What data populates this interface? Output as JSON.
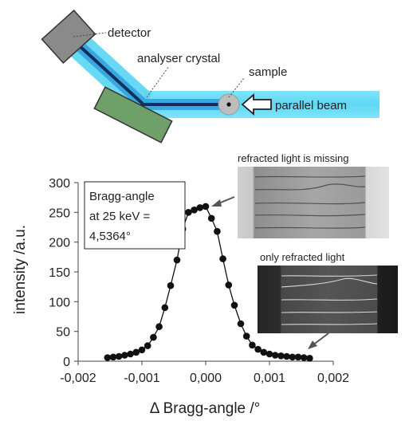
{
  "setup": {
    "labels": {
      "detector": "detector",
      "analyser_crystal": "analyser crystal",
      "sample": "sample",
      "parallel_beam": "parallel beam"
    },
    "colors": {
      "beam_outer": "#5fd7f3",
      "beam_core": "#0f2f5c",
      "detector": "#8a8a8a",
      "crystal": "#6fa06a",
      "sample": "#bdbdbd"
    }
  },
  "images": {
    "missing": {
      "caption": "refracted light is missing"
    },
    "only": {
      "caption": "only refracted light"
    }
  },
  "chart_data": {
    "type": "line",
    "xlabel": "Δ Bragg-angle /°",
    "ylabel": "intensity /a.u.",
    "xlim": [
      -0.002,
      0.002
    ],
    "ylim": [
      0,
      300
    ],
    "xticks": [
      -0.002,
      -0.001,
      0,
      0.001,
      0.002
    ],
    "xtick_labels": [
      "-0,002",
      "-0,001",
      "0,000",
      "0,001",
      "0,002"
    ],
    "yticks": [
      0,
      50,
      100,
      150,
      200,
      250,
      300
    ],
    "ytick_labels": [
      "0",
      "50",
      "100",
      "150",
      "200",
      "250",
      "300"
    ],
    "grid": false,
    "annotation": [
      "Bragg-angle",
      "at 25 keV =",
      "4,5364°"
    ],
    "series": [
      {
        "x": [
          -0.00154,
          -0.00145,
          -0.00136,
          -0.00127,
          -0.00118,
          -0.00109,
          -0.001,
          -0.00091,
          -0.00082,
          -0.00073,
          -0.00064,
          -0.00055,
          -0.00045,
          -0.00036,
          -0.00027,
          -0.00018,
          -9e-05,
          0.0,
          9e-05,
          0.00018,
          0.00027,
          0.00036,
          0.00045,
          0.00055,
          0.00064,
          0.00073,
          0.00082,
          0.00091,
          0.001,
          0.00109,
          0.00118,
          0.00127,
          0.00136,
          0.00145,
          0.00154,
          0.00163
        ],
        "y": [
          6,
          7,
          8,
          10,
          12,
          15,
          19,
          26,
          40,
          58,
          90,
          127,
          170,
          222,
          250,
          254,
          258,
          260,
          240,
          218,
          172,
          128,
          94,
          63,
          42,
          27,
          20,
          15,
          12,
          10,
          9,
          8,
          7,
          7,
          6,
          5
        ]
      }
    ]
  }
}
